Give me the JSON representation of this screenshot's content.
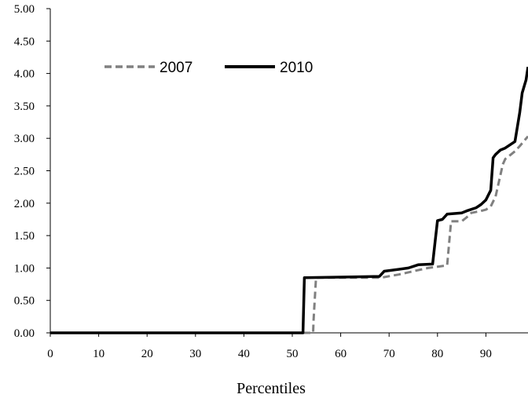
{
  "chart_data": {
    "type": "line",
    "title": "",
    "xlabel": "Percentiles",
    "ylabel": "",
    "xlim": [
      0,
      98.7
    ],
    "ylim": [
      0,
      5.0
    ],
    "x_ticks": [
      "0",
      "10",
      "20",
      "30",
      "40",
      "50",
      "60",
      "70",
      "80",
      "90"
    ],
    "y_ticks": [
      "0.00",
      "0.50",
      "1.00",
      "1.50",
      "2.00",
      "2.50",
      "3.00",
      "3.50",
      "4.00",
      "4.50",
      "5.00"
    ],
    "grid": false,
    "legend_position": "top-left",
    "series": [
      {
        "name": "2007",
        "color": "#808080",
        "dash": "dashed",
        "x": [
          0,
          54.3,
          54.4,
          54.9,
          60,
          68,
          69,
          72,
          75,
          78,
          82,
          82.3,
          82.8,
          85,
          86,
          87,
          89,
          90,
          91,
          92,
          93.5,
          94,
          96,
          97,
          98,
          98.7
        ],
        "y": [
          0,
          0,
          0.2,
          0.85,
          0.85,
          0.85,
          0.86,
          0.9,
          0.95,
          1.0,
          1.04,
          1.3,
          1.72,
          1.72,
          1.78,
          1.85,
          1.88,
          1.9,
          1.95,
          2.1,
          2.6,
          2.68,
          2.8,
          2.88,
          2.97,
          3.03
        ]
      },
      {
        "name": "2010",
        "color": "#000000",
        "dash": "solid",
        "x": [
          0,
          52.2,
          52.5,
          60,
          68,
          69,
          74,
          76,
          79,
          79.5,
          80,
          81,
          82,
          85,
          86,
          88,
          89,
          90,
          91,
          91.5,
          92,
          93,
          94,
          96,
          97,
          97.5,
          98.3,
          98.7
        ],
        "y": [
          0,
          0,
          0.85,
          0.86,
          0.87,
          0.95,
          1.0,
          1.05,
          1.06,
          1.4,
          1.73,
          1.75,
          1.83,
          1.85,
          1.88,
          1.93,
          1.98,
          2.05,
          2.2,
          2.7,
          2.75,
          2.82,
          2.85,
          2.95,
          3.4,
          3.7,
          3.9,
          4.1
        ]
      }
    ]
  }
}
